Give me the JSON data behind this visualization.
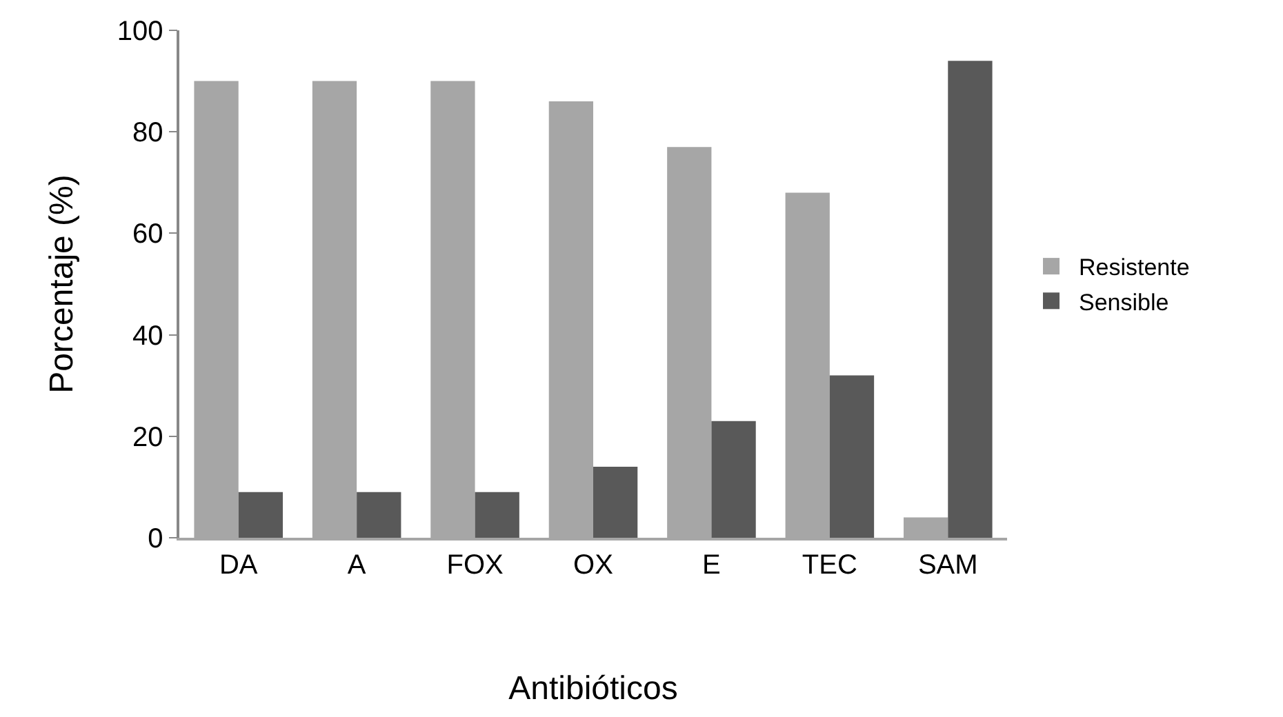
{
  "chart_data": {
    "type": "bar",
    "xlabel": "Antibióticos",
    "ylabel": "Porcentaje (%)",
    "categories": [
      "DA",
      "A",
      "FOX",
      "OX",
      "E",
      "TEC",
      "SAM"
    ],
    "series": [
      {
        "name": "Resistente",
        "color": "#a6a6a6",
        "values": [
          90,
          90,
          90,
          86,
          77,
          68,
          4
        ]
      },
      {
        "name": "Sensible",
        "color": "#595959",
        "values": [
          9,
          9,
          9,
          14,
          23,
          32,
          94
        ]
      }
    ],
    "ylim": [
      0,
      100
    ],
    "yticks": [
      0,
      20,
      40,
      60,
      80,
      100
    ],
    "grid": false,
    "legend": "right"
  }
}
